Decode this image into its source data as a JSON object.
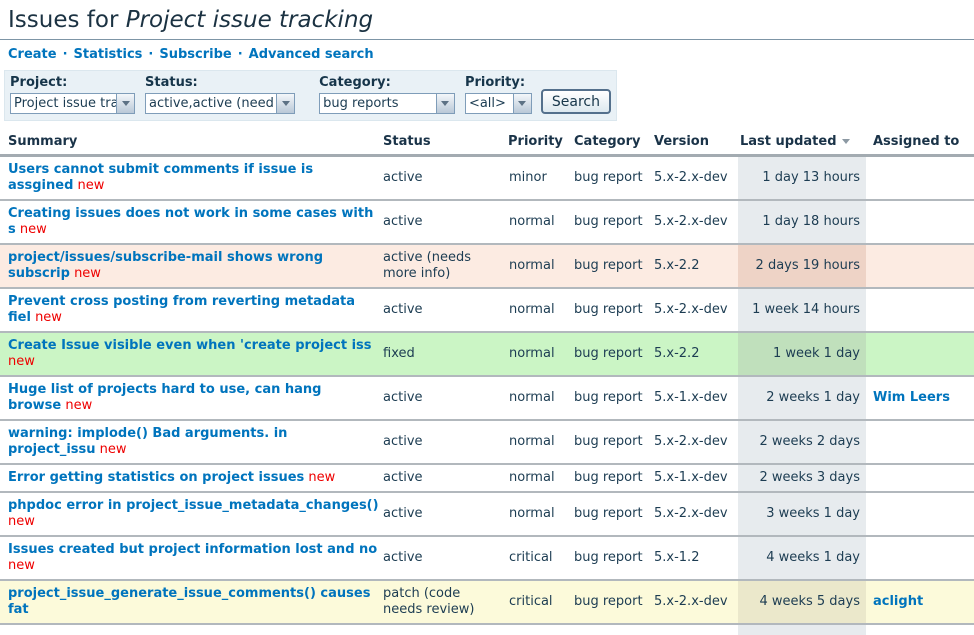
{
  "page": {
    "title_prefix": "Issues for ",
    "title_project": "Project issue tracking"
  },
  "nav": {
    "separator": "·",
    "links": [
      {
        "label": "Create"
      },
      {
        "label": "Statistics"
      },
      {
        "label": "Subscribe"
      },
      {
        "label": "Advanced search"
      }
    ]
  },
  "filters": {
    "fields": [
      {
        "label": "Project:",
        "value": "Project issue track"
      },
      {
        "label": "Status:",
        "value": "active,active (need"
      },
      {
        "label": "Category:",
        "value": "bug reports"
      },
      {
        "label": "Priority:",
        "value": "<all>"
      }
    ],
    "search_label": "Search"
  },
  "table": {
    "columns": [
      "Summary",
      "Status",
      "Priority",
      "Category",
      "Version",
      "Last updated",
      "Assigned to"
    ],
    "sort": {
      "column": "Last updated",
      "direction": "desc"
    },
    "new_label": "new",
    "rows": [
      {
        "summary": "Users cannot submit comments if issue is assgined",
        "new": true,
        "status": "active",
        "priority": "minor",
        "category": "bug report",
        "version": "5.x-2.x-dev",
        "updated": "1 day 13 hours",
        "assigned": "",
        "bg": "white"
      },
      {
        "summary": "Creating issues does not work in some cases with s",
        "new": true,
        "status": "active",
        "priority": "normal",
        "category": "bug report",
        "version": "5.x-2.x-dev",
        "updated": "1 day 18 hours",
        "assigned": "",
        "bg": "white"
      },
      {
        "summary": "project/issues/subscribe-mail shows wrong subscrip",
        "new": true,
        "status": "active (needs more info)",
        "priority": "normal",
        "category": "bug report",
        "version": "5.x-2.2",
        "updated": "2 days 19 hours",
        "assigned": "",
        "bg": "pink"
      },
      {
        "summary": "Prevent cross posting from reverting metadata fiel",
        "new": true,
        "status": "active",
        "priority": "normal",
        "category": "bug report",
        "version": "5.x-2.x-dev",
        "updated": "1 week 14 hours",
        "assigned": "",
        "bg": "white"
      },
      {
        "summary": "Create Issue visible even when 'create project iss",
        "new": true,
        "status": "fixed",
        "priority": "normal",
        "category": "bug report",
        "version": "5.x-2.2",
        "updated": "1 week 1 day",
        "assigned": "",
        "bg": "green"
      },
      {
        "summary": "Huge list of projects hard to use, can hang browse",
        "new": true,
        "status": "active",
        "priority": "normal",
        "category": "bug report",
        "version": "5.x-1.x-dev",
        "updated": "2 weeks 1 day",
        "assigned": "Wim Leers",
        "bg": "white"
      },
      {
        "summary": "warning: implode() Bad arguments. in project_issu",
        "new": true,
        "status": "active",
        "priority": "normal",
        "category": "bug report",
        "version": "5.x-2.x-dev",
        "updated": "2 weeks 2 days",
        "assigned": "",
        "bg": "white"
      },
      {
        "summary": "Error getting statistics on project issues",
        "new": true,
        "status": "active",
        "priority": "normal",
        "category": "bug report",
        "version": "5.x-1.x-dev",
        "updated": "2 weeks 3 days",
        "assigned": "",
        "bg": "white"
      },
      {
        "summary": "phpdoc error in project_issue_metadata_changes()",
        "new": true,
        "status": "active",
        "priority": "normal",
        "category": "bug report",
        "version": "5.x-2.x-dev",
        "updated": "3 weeks 1 day",
        "assigned": "",
        "bg": "white"
      },
      {
        "summary": "Issues created but project information lost and no",
        "new": true,
        "status": "active",
        "priority": "critical",
        "category": "bug report",
        "version": "5.x-1.2",
        "updated": "4 weeks 1 day",
        "assigned": "",
        "bg": "white"
      },
      {
        "summary": "project_issue_generate_issue_comments() causes fat",
        "new": false,
        "status": "patch (code needs review)",
        "priority": "critical",
        "category": "bug report",
        "version": "5.x-2.x-dev",
        "updated": "4 weeks 5 days",
        "assigned": "aclight",
        "bg": "yellow"
      }
    ]
  },
  "colors": {
    "link_blue": "#0074bd",
    "new_red": "#ee0000",
    "text_dark": "#1c3c52",
    "row_pink": "#fcebe2",
    "row_green": "#cbf5c5",
    "row_yellow": "#fcfada",
    "filter_bg": "#e9f1f6",
    "sorted_column_overlay": "#e2e8ec"
  }
}
